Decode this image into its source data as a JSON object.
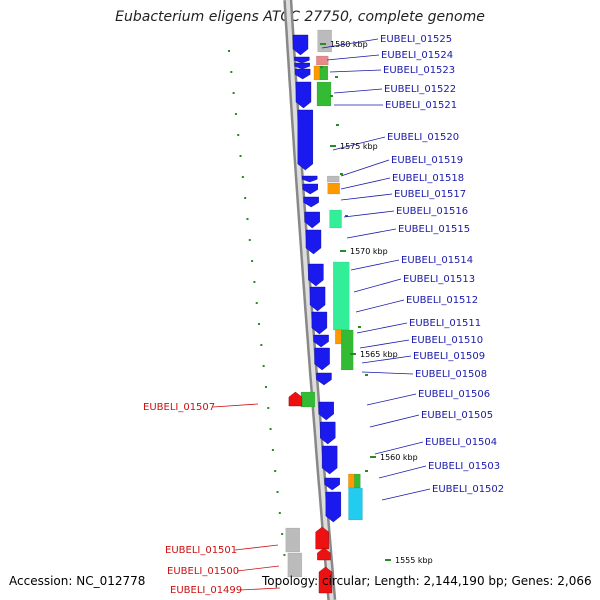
{
  "title": "Eubacterium eligens ATCC 27750, complete genome",
  "footer": {
    "accession": "Accession: NC_012778",
    "topology": "Topology: circular; Length: 2,144,190 bp; Genes: 2,066"
  },
  "colors": {
    "forward_gene": "#1a1aee",
    "reverse_gene": "#ee1111",
    "forward_label": "#1a1aaa",
    "reverse_label": "#cc1111",
    "backbone": "#999999",
    "tick": "#2a8a2a",
    "feature_grey": "#bbbbbb",
    "feature_pink": "#e88a8a",
    "feature_orange": "#ff9900",
    "feature_green": "#33bb33",
    "feature_teal": "#33ee99",
    "feature_cyan": "#22ccee"
  },
  "kbp_markers": [
    "1580 kbp",
    "1575 kbp",
    "1570 kbp",
    "1565 kbp",
    "1560 kbp",
    "1555 kbp"
  ],
  "forward_genes": [
    "EUBELI_01525",
    "EUBELI_01524",
    "EUBELI_01523",
    "EUBELI_01522",
    "EUBELI_01521",
    "EUBELI_01520",
    "EUBELI_01519",
    "EUBELI_01518",
    "EUBELI_01517",
    "EUBELI_01516",
    "EUBELI_01515",
    "EUBELI_01514",
    "EUBELI_01513",
    "EUBELI_01512",
    "EUBELI_01511",
    "EUBELI_01510",
    "EUBELI_01509",
    "EUBELI_01508",
    "EUBELI_01506",
    "EUBELI_01505",
    "EUBELI_01504",
    "EUBELI_01503",
    "EUBELI_01502"
  ],
  "reverse_genes": [
    "EUBELI_01507",
    "EUBELI_01501",
    "EUBELI_01500",
    "EUBELI_01499"
  ]
}
